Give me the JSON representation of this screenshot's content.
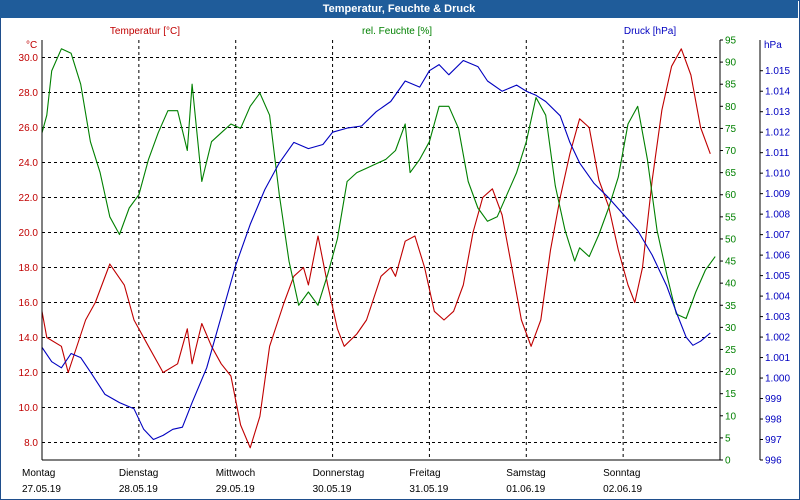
{
  "window": {
    "title": "Temperatur, Feuchte & Druck"
  },
  "colors": {
    "temperature": "#c00000",
    "humidity": "#008000",
    "pressure": "#0000c0",
    "titlebar": "#1f5c9a",
    "grid": "#000000"
  },
  "chart_data": {
    "type": "line",
    "title": "Temperatur, Feuchte & Druck",
    "xlabel": "",
    "x_unit": "days since 27.05.19 00:00",
    "x_range": [
      0,
      7
    ],
    "grid": true,
    "day_labels": [
      {
        "name": "Montag",
        "date": "27.05.19"
      },
      {
        "name": "Dienstag",
        "date": "28.05.19"
      },
      {
        "name": "Mittwoch",
        "date": "29.05.19"
      },
      {
        "name": "Donnerstag",
        "date": "30.05.19"
      },
      {
        "name": "Freitag",
        "date": "31.05.19"
      },
      {
        "name": "Samstag",
        "date": "01.06.19"
      },
      {
        "name": "Sonntag",
        "date": "02.06.19"
      }
    ],
    "axes": {
      "temperature": {
        "label": "Temperatur [°C]",
        "unit": "°C",
        "range": [
          7.0,
          31.0
        ],
        "ticks": [
          "8.0",
          "10.0",
          "12.0",
          "14.0",
          "16.0",
          "18.0",
          "20.0",
          "22.0",
          "24.0",
          "26.0",
          "28.0",
          "30.0"
        ]
      },
      "humidity": {
        "label": "rel. Feuchte [%]",
        "unit": "%",
        "range": [
          0,
          95
        ],
        "ticks": [
          "0",
          "5",
          "10",
          "15",
          "20",
          "25",
          "30",
          "35",
          "40",
          "45",
          "50",
          "55",
          "60",
          "65",
          "70",
          "75",
          "80",
          "85",
          "90",
          "95"
        ]
      },
      "pressure": {
        "label": "Druck [hPa]",
        "unit": "hPa",
        "range": [
          996,
          1016.5
        ],
        "ticks": [
          "996",
          "997",
          "998",
          "999",
          "1.000",
          "1.001",
          "1.002",
          "1.003",
          "1.004",
          "1.005",
          "1.006",
          "1.007",
          "1.008",
          "1.009",
          "1.010",
          "1.011",
          "1.012",
          "1.013",
          "1.014",
          "1.015"
        ]
      }
    },
    "series": [
      {
        "name": "Temperatur [°C]",
        "axis": "temperature",
        "points": [
          [
            0.0,
            15.5
          ],
          [
            0.05,
            14.0
          ],
          [
            0.2,
            13.5
          ],
          [
            0.27,
            12.0
          ],
          [
            0.45,
            15.0
          ],
          [
            0.55,
            16.0
          ],
          [
            0.7,
            18.2
          ],
          [
            0.85,
            17.0
          ],
          [
            0.95,
            15.0
          ],
          [
            1.1,
            13.5
          ],
          [
            1.25,
            12.0
          ],
          [
            1.4,
            12.5
          ],
          [
            1.5,
            14.5
          ],
          [
            1.55,
            12.5
          ],
          [
            1.65,
            14.8
          ],
          [
            1.75,
            13.5
          ],
          [
            1.85,
            12.5
          ],
          [
            1.95,
            11.8
          ],
          [
            2.05,
            9.0
          ],
          [
            2.15,
            7.7
          ],
          [
            2.25,
            9.5
          ],
          [
            2.35,
            13.5
          ],
          [
            2.5,
            16.0
          ],
          [
            2.6,
            17.5
          ],
          [
            2.7,
            18.0
          ],
          [
            2.75,
            17.0
          ],
          [
            2.85,
            19.8
          ],
          [
            2.95,
            17.0
          ],
          [
            3.05,
            14.5
          ],
          [
            3.12,
            13.5
          ],
          [
            3.25,
            14.2
          ],
          [
            3.35,
            15.0
          ],
          [
            3.5,
            17.5
          ],
          [
            3.6,
            18.0
          ],
          [
            3.65,
            17.5
          ],
          [
            3.75,
            19.5
          ],
          [
            3.85,
            19.8
          ],
          [
            3.95,
            18.0
          ],
          [
            4.05,
            15.5
          ],
          [
            4.15,
            15.0
          ],
          [
            4.25,
            15.5
          ],
          [
            4.35,
            17.0
          ],
          [
            4.45,
            20.0
          ],
          [
            4.55,
            22.0
          ],
          [
            4.65,
            22.5
          ],
          [
            4.75,
            21.0
          ],
          [
            4.85,
            18.0
          ],
          [
            4.95,
            15.0
          ],
          [
            5.05,
            13.5
          ],
          [
            5.15,
            15.0
          ],
          [
            5.25,
            19.0
          ],
          [
            5.35,
            22.0
          ],
          [
            5.45,
            24.5
          ],
          [
            5.55,
            26.5
          ],
          [
            5.65,
            26.0
          ],
          [
            5.75,
            23.0
          ],
          [
            5.85,
            21.5
          ],
          [
            5.95,
            19.0
          ],
          [
            6.05,
            17.0
          ],
          [
            6.12,
            16.0
          ],
          [
            6.2,
            18.0
          ],
          [
            6.3,
            23.0
          ],
          [
            6.4,
            27.0
          ],
          [
            6.5,
            29.5
          ],
          [
            6.6,
            30.5
          ],
          [
            6.7,
            29.0
          ],
          [
            6.8,
            26.0
          ],
          [
            6.9,
            24.5
          ]
        ]
      },
      {
        "name": "rel. Feuchte [%]",
        "axis": "humidity",
        "points": [
          [
            0.0,
            74
          ],
          [
            0.05,
            78
          ],
          [
            0.1,
            88
          ],
          [
            0.2,
            93
          ],
          [
            0.3,
            92
          ],
          [
            0.4,
            85
          ],
          [
            0.5,
            72
          ],
          [
            0.6,
            65
          ],
          [
            0.7,
            55
          ],
          [
            0.8,
            51
          ],
          [
            0.9,
            57
          ],
          [
            1.0,
            60
          ],
          [
            1.1,
            68
          ],
          [
            1.2,
            74
          ],
          [
            1.3,
            79
          ],
          [
            1.4,
            79
          ],
          [
            1.5,
            70
          ],
          [
            1.55,
            85
          ],
          [
            1.65,
            63
          ],
          [
            1.75,
            72
          ],
          [
            1.85,
            74
          ],
          [
            1.95,
            76
          ],
          [
            2.05,
            75
          ],
          [
            2.15,
            80
          ],
          [
            2.25,
            83
          ],
          [
            2.35,
            78
          ],
          [
            2.45,
            60
          ],
          [
            2.55,
            45
          ],
          [
            2.65,
            35
          ],
          [
            2.75,
            38
          ],
          [
            2.85,
            35
          ],
          [
            2.95,
            42
          ],
          [
            3.05,
            50
          ],
          [
            3.15,
            63
          ],
          [
            3.25,
            65
          ],
          [
            3.35,
            66
          ],
          [
            3.45,
            67
          ],
          [
            3.55,
            68
          ],
          [
            3.65,
            70
          ],
          [
            3.75,
            76
          ],
          [
            3.8,
            65
          ],
          [
            3.9,
            68
          ],
          [
            4.0,
            72
          ],
          [
            4.1,
            80
          ],
          [
            4.2,
            80
          ],
          [
            4.3,
            75
          ],
          [
            4.4,
            63
          ],
          [
            4.5,
            57
          ],
          [
            4.6,
            54
          ],
          [
            4.7,
            55
          ],
          [
            4.8,
            60
          ],
          [
            4.9,
            65
          ],
          [
            5.0,
            72
          ],
          [
            5.1,
            82
          ],
          [
            5.2,
            78
          ],
          [
            5.3,
            62
          ],
          [
            5.4,
            52
          ],
          [
            5.5,
            45
          ],
          [
            5.55,
            48
          ],
          [
            5.65,
            46
          ],
          [
            5.75,
            51
          ],
          [
            5.85,
            57
          ],
          [
            5.95,
            64
          ],
          [
            6.05,
            76
          ],
          [
            6.15,
            80
          ],
          [
            6.25,
            68
          ],
          [
            6.35,
            52
          ],
          [
            6.45,
            42
          ],
          [
            6.55,
            33
          ],
          [
            6.65,
            32
          ],
          [
            6.75,
            38
          ],
          [
            6.85,
            43
          ],
          [
            6.95,
            46
          ]
        ]
      },
      {
        "name": "Druck [hPa]",
        "axis": "pressure",
        "points": [
          [
            0.0,
            1001.5
          ],
          [
            0.1,
            1000.8
          ],
          [
            0.2,
            1000.5
          ],
          [
            0.3,
            1001.2
          ],
          [
            0.4,
            1001.0
          ],
          [
            0.5,
            1000.3
          ],
          [
            0.65,
            999.2
          ],
          [
            0.8,
            998.8
          ],
          [
            0.95,
            998.5
          ],
          [
            1.05,
            997.5
          ],
          [
            1.15,
            997.0
          ],
          [
            1.25,
            997.2
          ],
          [
            1.35,
            997.5
          ],
          [
            1.45,
            997.6
          ],
          [
            1.55,
            998.8
          ],
          [
            1.7,
            1000.5
          ],
          [
            1.85,
            1003.0
          ],
          [
            2.0,
            1005.5
          ],
          [
            2.15,
            1007.5
          ],
          [
            2.3,
            1009.2
          ],
          [
            2.45,
            1010.5
          ],
          [
            2.6,
            1011.5
          ],
          [
            2.75,
            1011.2
          ],
          [
            2.9,
            1011.4
          ],
          [
            3.0,
            1012.0
          ],
          [
            3.15,
            1012.2
          ],
          [
            3.3,
            1012.3
          ],
          [
            3.45,
            1013.0
          ],
          [
            3.6,
            1013.5
          ],
          [
            3.75,
            1014.5
          ],
          [
            3.9,
            1014.2
          ],
          [
            4.0,
            1015.0
          ],
          [
            4.1,
            1015.3
          ],
          [
            4.2,
            1014.8
          ],
          [
            4.35,
            1015.5
          ],
          [
            4.5,
            1015.2
          ],
          [
            4.6,
            1014.5
          ],
          [
            4.75,
            1014.0
          ],
          [
            4.9,
            1014.3
          ],
          [
            5.0,
            1014.0
          ],
          [
            5.1,
            1013.8
          ],
          [
            5.2,
            1013.5
          ],
          [
            5.35,
            1012.8
          ],
          [
            5.45,
            1011.5
          ],
          [
            5.55,
            1010.5
          ],
          [
            5.7,
            1009.5
          ],
          [
            5.85,
            1008.8
          ],
          [
            6.0,
            1008.0
          ],
          [
            6.15,
            1007.2
          ],
          [
            6.3,
            1006.0
          ],
          [
            6.45,
            1004.5
          ],
          [
            6.55,
            1003.2
          ],
          [
            6.65,
            1002.0
          ],
          [
            6.72,
            1001.6
          ],
          [
            6.8,
            1001.8
          ],
          [
            6.9,
            1002.2
          ]
        ]
      }
    ]
  }
}
